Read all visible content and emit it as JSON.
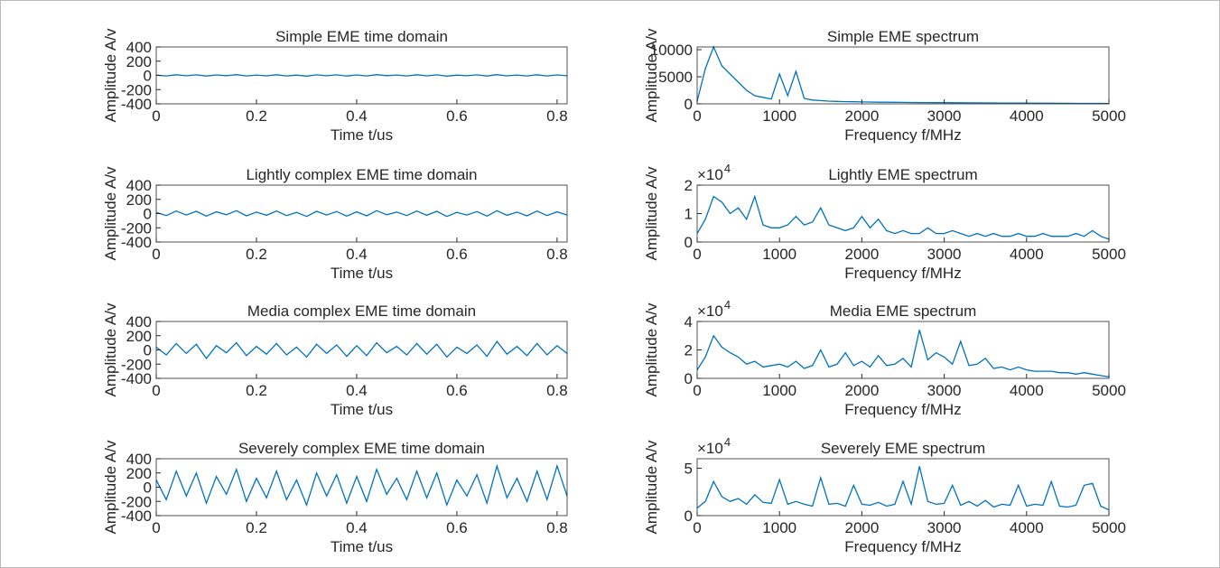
{
  "chart_data": [
    {
      "type": "line",
      "title": "Simple EME time domain",
      "xlabel": "Time t/us",
      "ylabel": "Amplitude A/v",
      "color": "#0072bd",
      "xlim": [
        0,
        0.82
      ],
      "xticks": [
        0,
        0.2,
        0.4,
        0.6,
        0.8
      ],
      "ylim": [
        -400,
        400
      ],
      "yticks": [
        -400,
        -200,
        0,
        200,
        400
      ],
      "x": [
        0,
        0.02,
        0.04,
        0.06,
        0.08,
        0.1,
        0.12,
        0.14,
        0.16,
        0.18,
        0.2,
        0.22,
        0.24,
        0.26,
        0.28,
        0.3,
        0.32,
        0.34,
        0.36,
        0.38,
        0.4,
        0.42,
        0.44,
        0.46,
        0.48,
        0.5,
        0.52,
        0.54,
        0.56,
        0.58,
        0.6,
        0.62,
        0.64,
        0.66,
        0.68,
        0.7,
        0.72,
        0.74,
        0.76,
        0.78,
        0.8,
        0.82
      ],
      "values": [
        4,
        -7,
        9,
        -5,
        8,
        -9,
        6,
        -4,
        10,
        -8,
        5,
        -6,
        9,
        -7,
        4,
        -10,
        8,
        -5,
        7,
        -9,
        6,
        -8,
        10,
        -4,
        5,
        -7,
        9,
        -6,
        8,
        -10,
        4,
        -5,
        7,
        -9,
        10,
        -6,
        5,
        -8,
        9,
        -7,
        6,
        -5
      ]
    },
    {
      "type": "line",
      "title": "Simple EME spectrum",
      "xlabel": "Frequency f/MHz",
      "ylabel": "Amplitude A/v",
      "color": "#0072bd",
      "xlim": [
        0,
        5000
      ],
      "xticks": [
        0,
        1000,
        2000,
        3000,
        4000,
        5000
      ],
      "ylim": [
        0,
        10500
      ],
      "yticks": [
        0,
        5000,
        10000
      ],
      "x": [
        0,
        100,
        200,
        300,
        400,
        500,
        600,
        700,
        800,
        900,
        1000,
        1100,
        1200,
        1300,
        1400,
        1500,
        1600,
        1700,
        1800,
        1900,
        2000,
        2100,
        2200,
        2300,
        2400,
        2500,
        2600,
        2700,
        2800,
        2900,
        3000,
        3100,
        3200,
        3300,
        3400,
        3500,
        3600,
        3700,
        3800,
        3900,
        4000,
        4100,
        4200,
        4300,
        4400,
        4500,
        4600,
        4700,
        4800,
        4900,
        5000
      ],
      "values": [
        500,
        6500,
        10500,
        7000,
        5500,
        4000,
        2500,
        1500,
        1200,
        900,
        5500,
        1500,
        6000,
        1000,
        700,
        600,
        500,
        450,
        400,
        380,
        350,
        330,
        300,
        300,
        280,
        260,
        250,
        240,
        230,
        220,
        210,
        200,
        200,
        190,
        180,
        170,
        160,
        150,
        150,
        140,
        130,
        120,
        120,
        110,
        100,
        100,
        90,
        90,
        80,
        80,
        70
      ]
    },
    {
      "type": "line",
      "title": "Lightly complex EME time domain",
      "xlabel": "Time t/us",
      "ylabel": "Amplitude A/v",
      "color": "#0072bd",
      "xlim": [
        0,
        0.82
      ],
      "xticks": [
        0,
        0.2,
        0.4,
        0.6,
        0.8
      ],
      "ylim": [
        -400,
        400
      ],
      "yticks": [
        -400,
        -200,
        0,
        200,
        400
      ],
      "x": [
        0,
        0.02,
        0.04,
        0.06,
        0.08,
        0.1,
        0.12,
        0.14,
        0.16,
        0.18,
        0.2,
        0.22,
        0.24,
        0.26,
        0.28,
        0.3,
        0.32,
        0.34,
        0.36,
        0.38,
        0.4,
        0.42,
        0.44,
        0.46,
        0.48,
        0.5,
        0.52,
        0.54,
        0.56,
        0.58,
        0.6,
        0.62,
        0.64,
        0.66,
        0.68,
        0.7,
        0.72,
        0.74,
        0.76,
        0.78,
        0.8,
        0.82
      ],
      "values": [
        16,
        -28,
        36,
        -20,
        32,
        -36,
        24,
        -16,
        40,
        -32,
        20,
        -24,
        36,
        -28,
        16,
        -40,
        32,
        -20,
        28,
        -36,
        24,
        -32,
        40,
        -16,
        20,
        -28,
        36,
        -24,
        32,
        -40,
        16,
        -20,
        28,
        -36,
        40,
        -24,
        20,
        -32,
        36,
        -28,
        24,
        -20
      ]
    },
    {
      "type": "line",
      "title": "Lightly EME spectrum",
      "xlabel": "Frequency f/MHz",
      "ylabel": "Amplitude A/v",
      "color": "#0072bd",
      "y_multiplier": "×10",
      "y_multiplier_exp": "4",
      "xlim": [
        0,
        5000
      ],
      "xticks": [
        0,
        1000,
        2000,
        3000,
        4000,
        5000
      ],
      "ylim": [
        0,
        2
      ],
      "yticks": [
        0,
        1,
        2
      ],
      "x": [
        0,
        100,
        200,
        300,
        400,
        500,
        600,
        700,
        800,
        900,
        1000,
        1100,
        1200,
        1300,
        1400,
        1500,
        1600,
        1700,
        1800,
        1900,
        2000,
        2100,
        2200,
        2300,
        2400,
        2500,
        2600,
        2700,
        2800,
        2900,
        3000,
        3100,
        3200,
        3300,
        3400,
        3500,
        3600,
        3700,
        3800,
        3900,
        4000,
        4100,
        4200,
        4300,
        4400,
        4500,
        4600,
        4700,
        4800,
        4900,
        5000
      ],
      "values": [
        0.3,
        0.8,
        1.6,
        1.4,
        1.0,
        1.2,
        0.8,
        1.6,
        0.6,
        0.5,
        0.5,
        0.6,
        0.9,
        0.6,
        0.7,
        1.2,
        0.6,
        0.5,
        0.4,
        0.5,
        0.9,
        0.5,
        0.8,
        0.4,
        0.3,
        0.4,
        0.3,
        0.3,
        0.5,
        0.3,
        0.3,
        0.4,
        0.3,
        0.2,
        0.3,
        0.2,
        0.3,
        0.2,
        0.2,
        0.3,
        0.2,
        0.2,
        0.3,
        0.2,
        0.2,
        0.2,
        0.3,
        0.2,
        0.4,
        0.2,
        0.1
      ]
    },
    {
      "type": "line",
      "title": "Media complex EME time domain",
      "xlabel": "Time t/us",
      "ylabel": "Amplitude A/v",
      "color": "#0072bd",
      "xlim": [
        0,
        0.82
      ],
      "xticks": [
        0,
        0.2,
        0.4,
        0.6,
        0.8
      ],
      "ylim": [
        -400,
        400
      ],
      "yticks": [
        -400,
        -200,
        0,
        200,
        400
      ],
      "x": [
        0,
        0.02,
        0.04,
        0.06,
        0.08,
        0.1,
        0.12,
        0.14,
        0.16,
        0.18,
        0.2,
        0.22,
        0.24,
        0.26,
        0.28,
        0.3,
        0.32,
        0.34,
        0.36,
        0.38,
        0.4,
        0.42,
        0.44,
        0.46,
        0.48,
        0.5,
        0.52,
        0.54,
        0.56,
        0.58,
        0.6,
        0.62,
        0.64,
        0.66,
        0.68,
        0.7,
        0.72,
        0.74,
        0.76,
        0.78,
        0.8,
        0.82
      ],
      "values": [
        40,
        -70,
        90,
        -50,
        80,
        -120,
        60,
        -40,
        100,
        -80,
        50,
        -60,
        90,
        -70,
        40,
        -100,
        80,
        -50,
        70,
        -90,
        60,
        -80,
        100,
        -40,
        50,
        -70,
        90,
        -60,
        80,
        -100,
        40,
        -50,
        70,
        -90,
        120,
        -60,
        50,
        -80,
        90,
        -70,
        60,
        -50
      ]
    },
    {
      "type": "line",
      "title": "Media EME spectrum",
      "xlabel": "Frequency f/MHz",
      "ylabel": "Amplitude A/v",
      "color": "#0072bd",
      "y_multiplier": "×10",
      "y_multiplier_exp": "4",
      "xlim": [
        0,
        5000
      ],
      "xticks": [
        0,
        1000,
        2000,
        3000,
        4000,
        5000
      ],
      "ylim": [
        0,
        4
      ],
      "yticks": [
        0,
        2,
        4
      ],
      "x": [
        0,
        100,
        200,
        300,
        400,
        500,
        600,
        700,
        800,
        900,
        1000,
        1100,
        1200,
        1300,
        1400,
        1500,
        1600,
        1700,
        1800,
        1900,
        2000,
        2100,
        2200,
        2300,
        2400,
        2500,
        2600,
        2700,
        2800,
        2900,
        3000,
        3100,
        3200,
        3300,
        3400,
        3500,
        3600,
        3700,
        3800,
        3900,
        4000,
        4100,
        4200,
        4300,
        4400,
        4500,
        4600,
        4700,
        4800,
        4900,
        5000
      ],
      "values": [
        0.6,
        1.5,
        3.0,
        2.2,
        1.8,
        1.5,
        1.0,
        1.2,
        0.8,
        0.9,
        1.0,
        0.8,
        1.2,
        0.7,
        0.9,
        2.0,
        0.8,
        1.0,
        1.8,
        0.9,
        1.2,
        0.8,
        1.6,
        0.9,
        1.0,
        1.4,
        0.8,
        3.4,
        1.3,
        1.8,
        1.5,
        1.0,
        2.6,
        0.9,
        1.0,
        1.4,
        0.7,
        0.8,
        0.6,
        0.8,
        0.6,
        0.5,
        0.5,
        0.5,
        0.4,
        0.4,
        0.3,
        0.4,
        0.3,
        0.2,
        0.1
      ]
    },
    {
      "type": "line",
      "title": "Severely complex EME time domain",
      "xlabel": "Time t/us",
      "ylabel": "Amplitude A/v",
      "color": "#0072bd",
      "xlim": [
        0,
        0.82
      ],
      "xticks": [
        0,
        0.2,
        0.4,
        0.6,
        0.8
      ],
      "ylim": [
        -400,
        400
      ],
      "yticks": [
        -400,
        -200,
        0,
        200,
        400
      ],
      "x": [
        0,
        0.02,
        0.04,
        0.06,
        0.08,
        0.1,
        0.12,
        0.14,
        0.16,
        0.18,
        0.2,
        0.22,
        0.24,
        0.26,
        0.28,
        0.3,
        0.32,
        0.34,
        0.36,
        0.38,
        0.4,
        0.42,
        0.44,
        0.46,
        0.48,
        0.5,
        0.52,
        0.54,
        0.56,
        0.58,
        0.6,
        0.62,
        0.64,
        0.66,
        0.68,
        0.7,
        0.72,
        0.74,
        0.76,
        0.78,
        0.8,
        0.82
      ],
      "values": [
        100,
        -175,
        225,
        -125,
        200,
        -225,
        150,
        -100,
        250,
        -200,
        125,
        -150,
        225,
        -175,
        100,
        -250,
        200,
        -125,
        175,
        -225,
        150,
        -200,
        250,
        -100,
        125,
        -175,
        225,
        -150,
        200,
        -250,
        100,
        -125,
        175,
        -225,
        300,
        -150,
        125,
        -200,
        225,
        -175,
        300,
        -125
      ]
    },
    {
      "type": "line",
      "title": "Severely EME spectrum",
      "xlabel": "Frequency f/MHz",
      "ylabel": "Amplitude A/v",
      "color": "#0072bd",
      "y_multiplier": "×10",
      "y_multiplier_exp": "4",
      "xlim": [
        0,
        5000
      ],
      "xticks": [
        0,
        1000,
        2000,
        3000,
        4000,
        5000
      ],
      "ylim": [
        0,
        6
      ],
      "yticks": [
        0,
        5
      ],
      "x": [
        0,
        100,
        200,
        300,
        400,
        500,
        600,
        700,
        800,
        900,
        1000,
        1100,
        1200,
        1300,
        1400,
        1500,
        1600,
        1700,
        1800,
        1900,
        2000,
        2100,
        2200,
        2300,
        2400,
        2500,
        2600,
        2700,
        2800,
        2900,
        3000,
        3100,
        3200,
        3300,
        3400,
        3500,
        3600,
        3700,
        3800,
        3900,
        4000,
        4100,
        4200,
        4300,
        4400,
        4500,
        4600,
        4700,
        4800,
        4900,
        5000
      ],
      "values": [
        0.8,
        1.5,
        3.6,
        2.0,
        1.5,
        1.8,
        1.2,
        2.2,
        1.4,
        1.3,
        3.8,
        1.2,
        1.5,
        1.2,
        1.0,
        4.0,
        1.2,
        1.3,
        1.0,
        3.2,
        1.2,
        1.1,
        1.4,
        1.0,
        1.2,
        3.6,
        1.2,
        5.2,
        1.5,
        1.2,
        1.3,
        3.2,
        1.1,
        1.5,
        1.0,
        1.6,
        0.9,
        1.2,
        1.1,
        3.2,
        1.0,
        1.2,
        1.1,
        3.6,
        1.0,
        0.9,
        1.1,
        3.2,
        3.4,
        1.0,
        0.6
      ]
    }
  ]
}
